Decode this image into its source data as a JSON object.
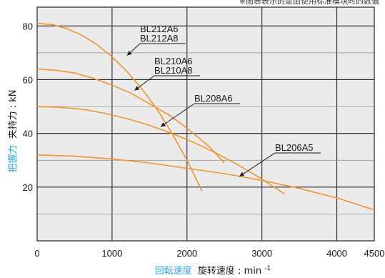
{
  "note": "※图表表示的是由使用标准模块时的数值",
  "chart_data": {
    "type": "line",
    "x_ticks": [
      0,
      1000,
      2000,
      3000,
      4000,
      4500
    ],
    "y_ticks": [
      20,
      40,
      60,
      80
    ],
    "xlim": [
      0,
      4500
    ],
    "ylim": [
      0,
      87
    ],
    "grid": true,
    "xlabel_jp": "回転速度",
    "xlabel_cn": "旋转速度",
    "xlabel_unit": "min",
    "xlabel_unit_exp": "-1",
    "ylabel_jp": "把握力",
    "ylabel_cn": "夹持力",
    "ylabel_unit": "kN",
    "series": [
      {
        "name": "BL212A6/BL212A8",
        "label_lines": [
          "BL212A6",
          "BL212A8"
        ],
        "x": [
          0,
          200,
          400,
          600,
          800,
          1000,
          1200,
          1400,
          1600,
          1800,
          2000,
          2200
        ],
        "y": [
          81,
          80.5,
          79,
          76.5,
          73,
          68.5,
          63,
          56.5,
          49,
          40,
          30,
          18.5
        ]
      },
      {
        "name": "BL210A6/BL210A8",
        "label_lines": [
          "BL210A6",
          "BL210A8"
        ],
        "x": [
          0,
          250,
          500,
          750,
          1000,
          1250,
          1500,
          1750,
          2000,
          2300,
          2500
        ],
        "y": [
          64,
          63.5,
          62.5,
          60.5,
          58,
          55,
          51,
          47,
          42,
          35,
          29
        ]
      },
      {
        "name": "BL208A6",
        "label_lines": [
          "BL208A6"
        ],
        "x": [
          0,
          300,
          600,
          900,
          1200,
          1500,
          1800,
          2100,
          2400,
          2700,
          3000,
          3300
        ],
        "y": [
          50,
          49.7,
          49,
          47.5,
          45.5,
          43,
          40,
          36.5,
          32.5,
          28,
          23,
          17.5
        ]
      },
      {
        "name": "BL206A5",
        "label_lines": [
          "BL206A5"
        ],
        "x": [
          0,
          500,
          1000,
          1500,
          2000,
          2500,
          3000,
          3500,
          4000,
          4500
        ],
        "y": [
          32,
          31.5,
          30.5,
          29,
          27,
          25,
          22.5,
          19.5,
          16,
          11.5
        ]
      }
    ],
    "line_color": "#f0952d",
    "title_color": "#2aa6e0",
    "grid_color": "#222222",
    "plot_bg": "#ebebeb"
  }
}
